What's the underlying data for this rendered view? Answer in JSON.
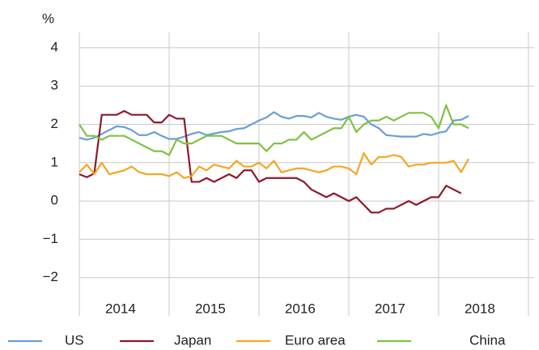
{
  "chart_data": {
    "type": "line",
    "y_label": "%",
    "categories": [
      null,
      null,
      null,
      null,
      null,
      null,
      "2014",
      null,
      null,
      null,
      null,
      null,
      null,
      null,
      null,
      null,
      null,
      null,
      "2015",
      null,
      null,
      null,
      null,
      null,
      null,
      null,
      null,
      null,
      null,
      null,
      "2016",
      null,
      null,
      null,
      null,
      null,
      null,
      null,
      null,
      null,
      null,
      null,
      "2017",
      null,
      null,
      null,
      null,
      null,
      null,
      null,
      null,
      null,
      null
    ],
    "series": [
      {
        "name": "US",
        "color": "#6a9fd4",
        "values": [
          1.65,
          1.6,
          1.65,
          1.75,
          1.85,
          1.95,
          1.93,
          1.85,
          1.72,
          1.72,
          1.8,
          1.7,
          1.62,
          1.62,
          1.68,
          1.75,
          1.8,
          1.72,
          1.76,
          1.8,
          1.82,
          1.88,
          1.9,
          2.0,
          2.1,
          2.18,
          2.32,
          2.2,
          2.15,
          2.22,
          2.22,
          2.18,
          2.3,
          2.2,
          2.15,
          2.12,
          2.2,
          2.25,
          2.2,
          2.0,
          1.9,
          1.72,
          1.7,
          1.68,
          1.68,
          1.68,
          1.75,
          1.72,
          1.78,
          1.82,
          2.1,
          2.12,
          2.22
        ]
      },
      {
        "name": "Japan",
        "color": "#8b1a2b",
        "values": [
          0.7,
          0.62,
          0.72,
          2.25,
          2.25,
          2.25,
          2.35,
          2.25,
          2.25,
          2.25,
          2.05,
          2.05,
          2.25,
          2.15,
          2.15,
          0.5,
          0.5,
          0.6,
          0.5,
          0.6,
          0.7,
          0.6,
          0.8,
          0.8,
          0.5,
          0.6,
          0.6,
          0.6,
          0.6,
          0.6,
          0.5,
          0.3,
          0.2,
          0.1,
          0.2,
          0.1,
          0.0,
          0.1,
          -0.1,
          -0.3,
          -0.3,
          -0.2,
          -0.2,
          -0.1,
          0.0,
          -0.1,
          0.0,
          0.1,
          0.1,
          0.4,
          0.3,
          0.2,
          null
        ]
      },
      {
        "name": "Euro area",
        "color": "#f5a623",
        "values": [
          0.75,
          0.95,
          0.7,
          1.0,
          0.7,
          0.75,
          0.8,
          0.9,
          0.75,
          0.7,
          0.7,
          0.7,
          0.65,
          0.75,
          0.6,
          0.65,
          0.9,
          0.8,
          0.95,
          0.9,
          0.85,
          1.05,
          0.9,
          0.9,
          1.0,
          0.85,
          1.05,
          0.75,
          0.8,
          0.85,
          0.85,
          0.8,
          0.75,
          0.8,
          0.9,
          0.9,
          0.85,
          0.7,
          1.25,
          0.95,
          1.15,
          1.15,
          1.2,
          1.15,
          0.9,
          0.95,
          0.95,
          1.0,
          1.0,
          1.0,
          1.05,
          0.75,
          1.1
        ]
      },
      {
        "name": "China",
        "color": "#7dc242",
        "values": [
          2.0,
          1.7,
          1.7,
          1.6,
          1.7,
          1.7,
          1.7,
          1.6,
          1.5,
          1.4,
          1.3,
          1.3,
          1.2,
          1.6,
          1.5,
          1.5,
          1.6,
          1.7,
          1.7,
          1.7,
          1.6,
          1.5,
          1.5,
          1.5,
          1.5,
          1.3,
          1.5,
          1.5,
          1.6,
          1.6,
          1.8,
          1.6,
          1.7,
          1.8,
          1.9,
          1.9,
          2.2,
          1.8,
          2.0,
          2.1,
          2.1,
          2.2,
          2.1,
          2.2,
          2.3,
          2.3,
          2.3,
          2.2,
          1.9,
          2.5,
          2.0,
          2.0,
          1.9
        ]
      }
    ],
    "x_extra_label": "2018",
    "ylim": [
      -3,
      4.4
    ],
    "yticks": [
      {
        "value": -2,
        "label": "−2"
      },
      {
        "value": -1,
        "label": "−1"
      },
      0,
      1,
      2,
      3,
      4
    ],
    "grid": true,
    "legend": "bottom"
  }
}
